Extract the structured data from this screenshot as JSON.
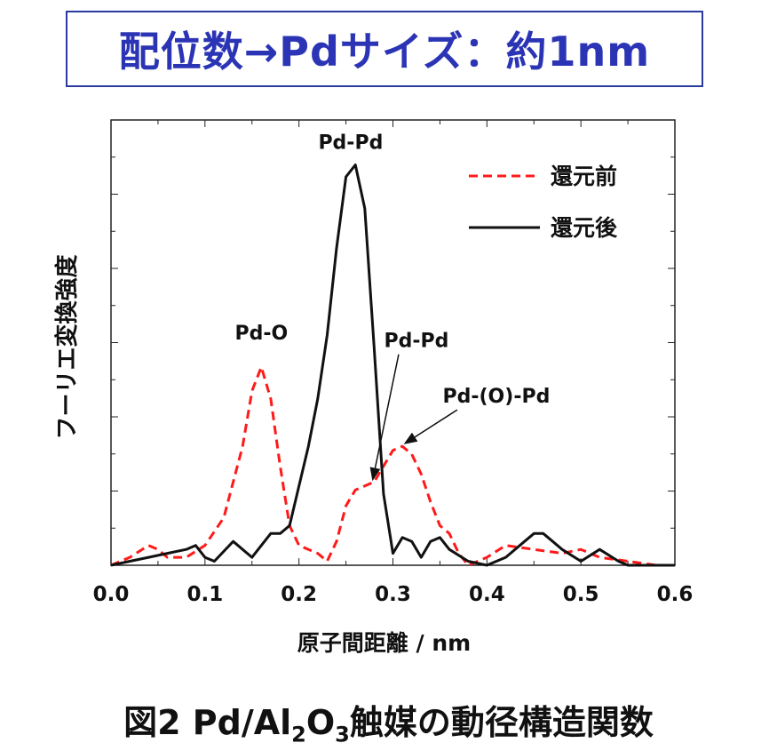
{
  "header": {
    "text": "配位数→Pdサイズ：約1nm"
  },
  "figure_caption": {
    "prefix": "図2 Pd/Al",
    "sub1": "2",
    "mid": "O",
    "sub2": "3",
    "suffix": "触媒の動径構造関数"
  },
  "colors": {
    "before": "#ff1a1a",
    "after": "#111111",
    "header": "#2b34b5",
    "axis": "#222222"
  },
  "chart_data": {
    "type": "line",
    "xlabel": "原子間距離 / nm",
    "ylabel": "フーリエ変換強度",
    "xlim": [
      0.0,
      0.6
    ],
    "ylim": [
      0,
      1.0
    ],
    "x_ticks": [
      "0.0",
      "0.1",
      "0.2",
      "0.3",
      "0.4",
      "0.5",
      "0.6"
    ],
    "legend_position": "top-right",
    "grid": false,
    "series": [
      {
        "name": "還元前",
        "style": "dashed",
        "color": "#ff1a1a",
        "x": [
          0.0,
          0.02,
          0.04,
          0.05,
          0.06,
          0.08,
          0.1,
          0.12,
          0.14,
          0.15,
          0.16,
          0.17,
          0.18,
          0.19,
          0.2,
          0.21,
          0.22,
          0.23,
          0.24,
          0.25,
          0.26,
          0.27,
          0.28,
          0.29,
          0.3,
          0.31,
          0.32,
          0.33,
          0.34,
          0.35,
          0.36,
          0.37,
          0.38,
          0.4,
          0.42,
          0.45,
          0.48,
          0.5,
          0.52,
          0.55,
          0.58,
          0.6
        ],
        "y": [
          0.0,
          0.02,
          0.05,
          0.04,
          0.02,
          0.02,
          0.05,
          0.12,
          0.3,
          0.44,
          0.5,
          0.42,
          0.25,
          0.1,
          0.05,
          0.04,
          0.03,
          0.01,
          0.06,
          0.15,
          0.19,
          0.2,
          0.21,
          0.25,
          0.29,
          0.3,
          0.28,
          0.23,
          0.16,
          0.1,
          0.08,
          0.03,
          0.0,
          0.02,
          0.05,
          0.04,
          0.03,
          0.04,
          0.02,
          0.01,
          0.0,
          0.0
        ]
      },
      {
        "name": "還元後",
        "style": "solid",
        "color": "#111111",
        "x": [
          0.0,
          0.02,
          0.04,
          0.06,
          0.08,
          0.09,
          0.1,
          0.11,
          0.13,
          0.14,
          0.15,
          0.16,
          0.17,
          0.18,
          0.19,
          0.2,
          0.21,
          0.22,
          0.23,
          0.24,
          0.25,
          0.26,
          0.27,
          0.28,
          0.29,
          0.3,
          0.31,
          0.32,
          0.33,
          0.34,
          0.35,
          0.36,
          0.38,
          0.4,
          0.42,
          0.44,
          0.45,
          0.46,
          0.47,
          0.48,
          0.5,
          0.52,
          0.54,
          0.55,
          0.57,
          0.6
        ],
        "y": [
          0.0,
          0.01,
          0.02,
          0.03,
          0.04,
          0.05,
          0.02,
          0.01,
          0.06,
          0.04,
          0.02,
          0.05,
          0.08,
          0.08,
          0.1,
          0.2,
          0.3,
          0.42,
          0.58,
          0.8,
          0.98,
          1.01,
          0.9,
          0.55,
          0.18,
          0.03,
          0.07,
          0.06,
          0.02,
          0.06,
          0.07,
          0.04,
          0.01,
          0.0,
          0.02,
          0.06,
          0.08,
          0.08,
          0.06,
          0.04,
          0.01,
          0.04,
          0.01,
          0.0,
          0.0,
          0.0
        ]
      }
    ],
    "annotations": [
      {
        "text": "Pd-O",
        "x": 0.16,
        "y": 0.57
      },
      {
        "text": "Pd-Pd",
        "x": 0.255,
        "y": 1.05
      },
      {
        "text": "Pd-Pd",
        "x": 0.325,
        "y": 0.55,
        "arrow_to": [
          0.275,
          0.21
        ]
      },
      {
        "text": "Pd-(O)-Pd",
        "x": 0.41,
        "y": 0.41,
        "arrow_to": [
          0.31,
          0.3
        ]
      }
    ]
  }
}
